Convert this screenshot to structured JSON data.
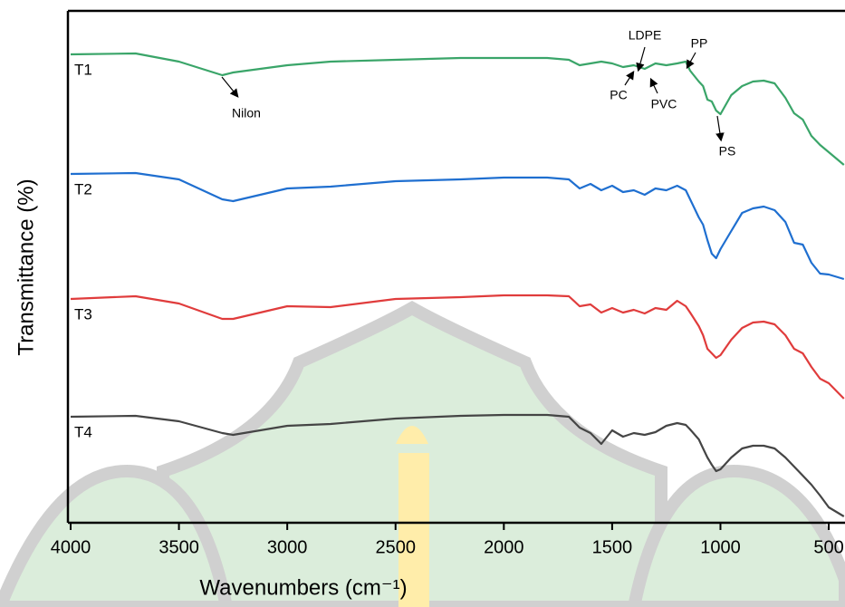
{
  "chart_data": {
    "type": "line",
    "xlabel": "Wavenumbers (cm⁻¹)",
    "ylabel": "Transmittance (%)",
    "xlim": [
      4000,
      425
    ],
    "ylim": [
      0,
      565
    ],
    "xticks": [
      4000,
      3500,
      3000,
      2500,
      2000,
      1500,
      1000,
      500
    ],
    "x": [
      4000,
      3700,
      3500,
      3300,
      3250,
      3000,
      2800,
      2500,
      2200,
      2000,
      1800,
      1700,
      1650,
      1600,
      1550,
      1500,
      1450,
      1400,
      1350,
      1300,
      1250,
      1200,
      1160,
      1140,
      1100,
      1080,
      1060,
      1040,
      1020,
      1000,
      950,
      900,
      850,
      800,
      750,
      700,
      660,
      620,
      580,
      540,
      500,
      430
    ],
    "series": [
      {
        "name": "T1",
        "color": "#3aa569",
        "values": [
          517,
          518,
          509,
          494,
          497,
          505,
          509,
          511,
          513,
          513,
          513,
          511,
          505,
          507,
          509,
          507,
          503,
          505,
          501,
          507,
          505,
          507,
          509,
          499,
          487,
          482,
          467,
          465,
          455,
          451,
          472,
          482,
          487,
          488,
          485,
          469,
          452,
          445,
          427,
          417,
          409,
          395
        ]
      },
      {
        "name": "T2",
        "color": "#1f6fd0",
        "values": [
          385,
          386,
          379,
          357,
          355,
          369,
          371,
          377,
          379,
          381,
          381,
          379,
          369,
          374,
          367,
          372,
          365,
          367,
          362,
          369,
          367,
          372,
          367,
          357,
          337,
          329,
          312,
          297,
          292,
          302,
          322,
          342,
          347,
          349,
          345,
          332,
          309,
          307,
          287,
          275,
          274,
          269
        ]
      },
      {
        "name": "T3",
        "color": "#e03c3c",
        "values": [
          247,
          250,
          242,
          225,
          225,
          239,
          238,
          247,
          249,
          251,
          251,
          250,
          239,
          241,
          232,
          237,
          232,
          235,
          231,
          237,
          235,
          245,
          239,
          232,
          217,
          207,
          192,
          187,
          182,
          185,
          202,
          215,
          221,
          222,
          219,
          207,
          192,
          187,
          172,
          159,
          154,
          137
        ]
      },
      {
        "name": "T4",
        "color": "#454545",
        "values": [
          117,
          118,
          112,
          99,
          97,
          107,
          109,
          115,
          118,
          119,
          119,
          117,
          105,
          99,
          87,
          102,
          95,
          99,
          97,
          100,
          107,
          110,
          108,
          103,
          92,
          82,
          72,
          64,
          57,
          59,
          72,
          82,
          85,
          85,
          82,
          72,
          62,
          52,
          42,
          30,
          17,
          7
        ]
      }
    ],
    "annotations": [
      "Nilon",
      "PC",
      "LDPE",
      "PVC",
      "PP",
      "PS"
    ]
  }
}
